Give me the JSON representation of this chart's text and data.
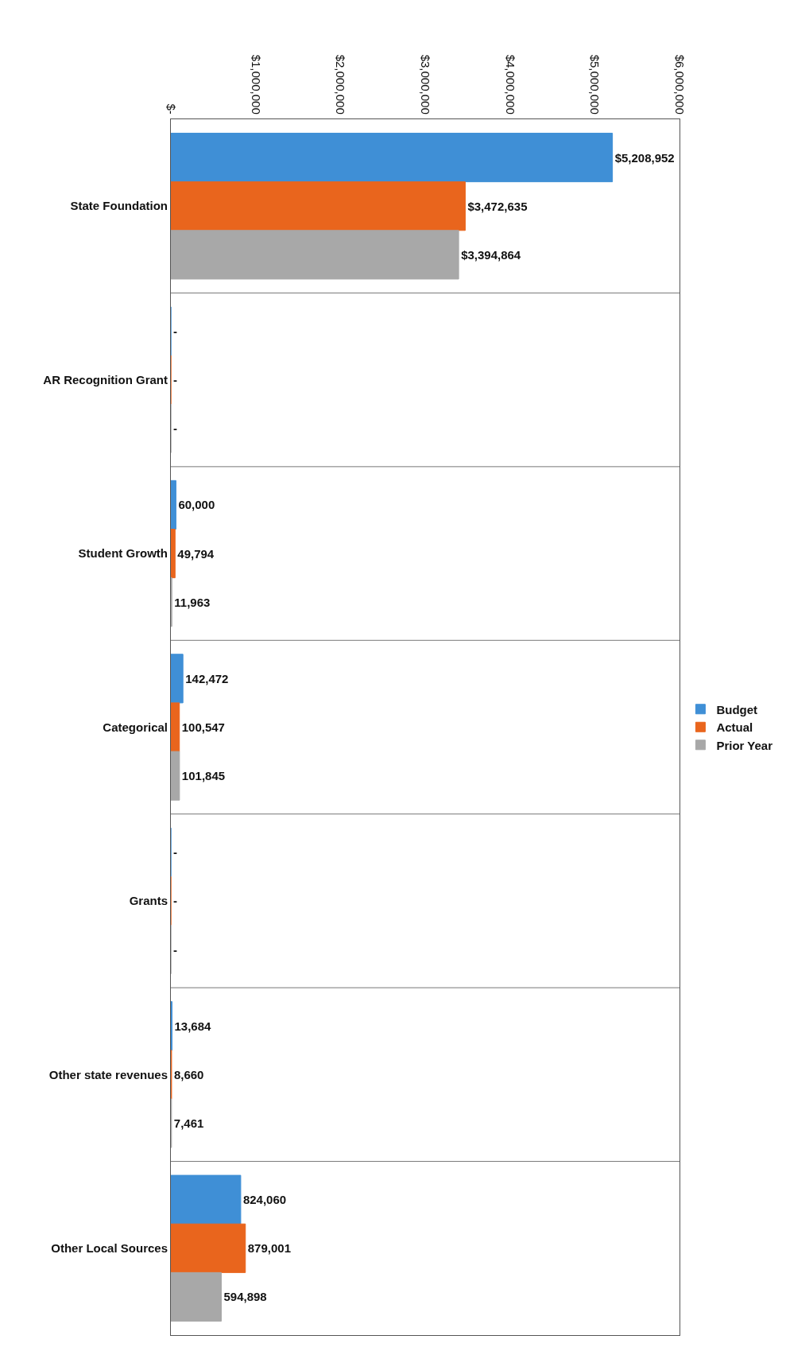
{
  "chart_data": {
    "type": "bar",
    "orientation": "horizontal",
    "categories": [
      "State Foundation",
      "AR Recognition Grant",
      "Student Growth",
      "Categorical",
      "Grants",
      "Other state revenues",
      "Other Local Sources"
    ],
    "series": [
      {
        "name": "Budget",
        "color": "#3f8fd6",
        "values": [
          5208952,
          0,
          60000,
          142472,
          0,
          13684,
          824060
        ],
        "value_labels": [
          "$5,208,952",
          "-",
          "60,000",
          "142,472",
          "-",
          "13,684",
          "824,060"
        ]
      },
      {
        "name": "Actual",
        "color": "#e9651d",
        "values": [
          3472635,
          0,
          49794,
          100547,
          0,
          8660,
          879001
        ],
        "value_labels": [
          "$3,472,635",
          "-",
          "49,794",
          "100,547",
          "-",
          "8,660",
          "879,001"
        ]
      },
      {
        "name": "Prior Year",
        "color": "#a8a8a8",
        "values": [
          3394864,
          0,
          11963,
          101845,
          0,
          7461,
          594898
        ],
        "value_labels": [
          "$3,394,864",
          "-",
          "11,963",
          "101,845",
          "-",
          "7,461",
          "594,898"
        ]
      }
    ],
    "xlim": [
      0,
      6000000
    ],
    "xticks": [
      {
        "value": 0,
        "label": "$-"
      },
      {
        "value": 1000000,
        "label": "$1,000,000"
      },
      {
        "value": 2000000,
        "label": "$2,000,000"
      },
      {
        "value": 3000000,
        "label": "$3,000,000"
      },
      {
        "value": 4000000,
        "label": "$4,000,000"
      },
      {
        "value": 5000000,
        "label": "$5,000,000"
      },
      {
        "value": 6000000,
        "label": "$6,000,000"
      }
    ],
    "grid": "y",
    "legend": "right"
  }
}
